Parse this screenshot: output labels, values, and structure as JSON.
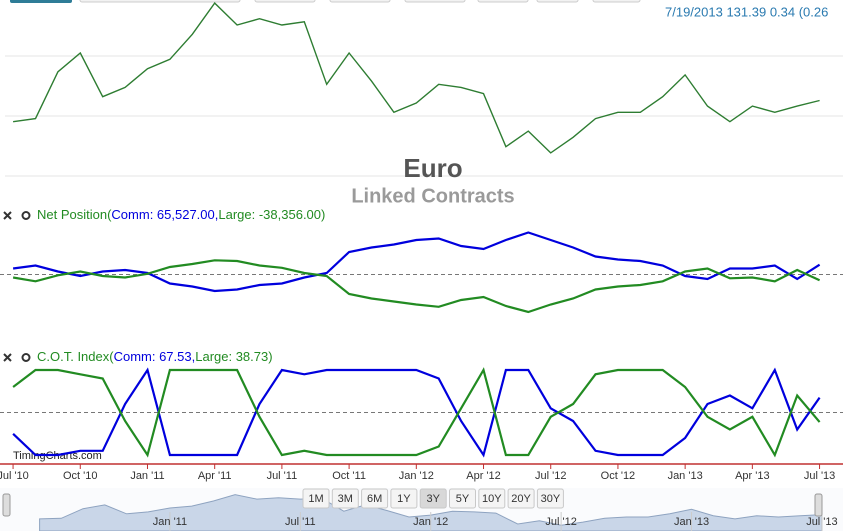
{
  "header": {
    "quote": "7/19/2013 131.39 0.34 (0.26"
  },
  "watermark": "TimingCharts.com",
  "chart_data": [
    {
      "type": "line",
      "title": "Euro",
      "subtitle": "Linked Contracts",
      "color": "#2e7d32",
      "x": [
        0,
        1,
        2,
        3,
        4,
        5,
        6,
        7,
        8,
        9,
        10,
        11,
        12,
        13,
        14,
        15,
        16,
        17,
        18,
        19,
        20,
        21,
        22,
        23,
        24,
        25,
        26,
        27,
        28,
        29,
        30,
        31,
        32,
        33,
        34,
        35,
        36
      ],
      "xlim": [
        -0.36,
        36.6
      ],
      "ylim": [
        119.3,
        147.5
      ],
      "values": [
        128,
        128.5,
        136,
        139,
        132,
        133.5,
        136.5,
        138,
        142,
        147,
        143.5,
        144.5,
        143.5,
        144,
        134,
        139,
        134.5,
        129.5,
        131,
        134,
        133.5,
        132.5,
        124,
        126.5,
        123,
        125.5,
        128.5,
        129.5,
        129.5,
        132,
        135.5,
        130.5,
        128,
        130.5,
        129.5,
        130.5,
        131.39
      ]
    },
    {
      "type": "line",
      "title": "Net Position(",
      "title_end": ")",
      "reference_line": 0,
      "x": [
        0,
        1,
        2,
        3,
        4,
        5,
        6,
        7,
        8,
        9,
        10,
        11,
        12,
        13,
        14,
        15,
        16,
        17,
        18,
        19,
        20,
        21,
        22,
        23,
        24,
        25,
        26,
        27,
        28,
        29,
        30,
        31,
        32,
        33,
        34,
        35,
        36
      ],
      "xlim": [
        -0.36,
        36.6
      ],
      "ylim": [
        -290000,
        350000
      ],
      "series": [
        {
          "legend": "Comm: 65,527.00,",
          "color": "#0000dd",
          "values": [
            40000,
            60000,
            20000,
            -10000,
            20000,
            30000,
            10000,
            -60000,
            -80000,
            -110000,
            -100000,
            -70000,
            -60000,
            -20000,
            10000,
            150000,
            180000,
            200000,
            230000,
            240000,
            190000,
            170000,
            230000,
            280000,
            230000,
            180000,
            120000,
            100000,
            90000,
            60000,
            -10000,
            -30000,
            40000,
            40000,
            60000,
            -30000,
            65527
          ]
        },
        {
          "legend": "Large: -38,356.00",
          "color": "#228b22",
          "values": [
            -20000,
            -45000,
            -5000,
            20000,
            -10000,
            -20000,
            5000,
            50000,
            70000,
            95000,
            90000,
            60000,
            45000,
            10000,
            -10000,
            -130000,
            -160000,
            -180000,
            -200000,
            -215000,
            -170000,
            -150000,
            -210000,
            -250000,
            -200000,
            -160000,
            -100000,
            -80000,
            -70000,
            -45000,
            20000,
            40000,
            -25000,
            -20000,
            -45000,
            30000,
            -38356
          ]
        }
      ]
    },
    {
      "type": "line",
      "title": "C.O.T. Index(",
      "title_end": ")",
      "reference_line": 50,
      "x": [
        0,
        1,
        2,
        3,
        4,
        5,
        6,
        7,
        8,
        9,
        10,
        11,
        12,
        13,
        14,
        15,
        16,
        17,
        18,
        19,
        20,
        21,
        22,
        23,
        24,
        25,
        26,
        27,
        28,
        29,
        30,
        31,
        32,
        33,
        34,
        35,
        36
      ],
      "xlim": [
        -0.36,
        36.6
      ],
      "ylim": [
        0,
        100
      ],
      "xticks": [
        {
          "value": 0,
          "label": "Jul '10"
        },
        {
          "value": 3,
          "label": "Oct '10"
        },
        {
          "value": 6,
          "label": "Jan '11"
        },
        {
          "value": 9,
          "label": "Apr '11"
        },
        {
          "value": 12,
          "label": "Jul '11"
        },
        {
          "value": 15,
          "label": "Oct '11"
        },
        {
          "value": 18,
          "label": "Jan '12"
        },
        {
          "value": 21,
          "label": "Apr '12"
        },
        {
          "value": 24,
          "label": "Jul '12"
        },
        {
          "value": 27,
          "label": "Oct '12"
        },
        {
          "value": 30,
          "label": "Jan '13"
        },
        {
          "value": 33,
          "label": "Apr '13"
        },
        {
          "value": 36,
          "label": "Jul '13"
        }
      ],
      "series": [
        {
          "legend": "Comm: 67.53,",
          "color": "#0000dd",
          "values": [
            25,
            0,
            0,
            5,
            5,
            60,
            100,
            0,
            0,
            0,
            0,
            60,
            100,
            95,
            100,
            100,
            100,
            100,
            100,
            90,
            40,
            0,
            100,
            100,
            55,
            40,
            5,
            0,
            0,
            0,
            20,
            60,
            70,
            55,
            100,
            30,
            67.53
          ]
        },
        {
          "legend": "Large: 38.73",
          "color": "#228b22",
          "values": [
            80,
            100,
            100,
            95,
            90,
            40,
            0,
            100,
            100,
            100,
            100,
            45,
            0,
            5,
            0,
            0,
            0,
            0,
            0,
            10,
            55,
            100,
            0,
            0,
            45,
            60,
            95,
            100,
            100,
            100,
            80,
            45,
            30,
            45,
            0,
            70,
            38.73
          ]
        }
      ]
    }
  ],
  "navigator": {
    "xlim": [
      -1.82,
      36.97
    ],
    "xticks": [
      {
        "value": 6,
        "label": "Jan '11"
      },
      {
        "value": 12,
        "label": "Jul '11"
      },
      {
        "value": 18,
        "label": "Jan '12"
      },
      {
        "value": 24,
        "label": "Jul '12"
      },
      {
        "value": 30,
        "label": "Jan '13"
      },
      {
        "value": 36,
        "label": "Jul '13"
      }
    ]
  },
  "range_buttons": {
    "labels": [
      "1M",
      "3M",
      "6M",
      "1Y",
      "3Y",
      "5Y",
      "10Y",
      "20Y",
      "30Y"
    ],
    "selected": "3Y"
  }
}
